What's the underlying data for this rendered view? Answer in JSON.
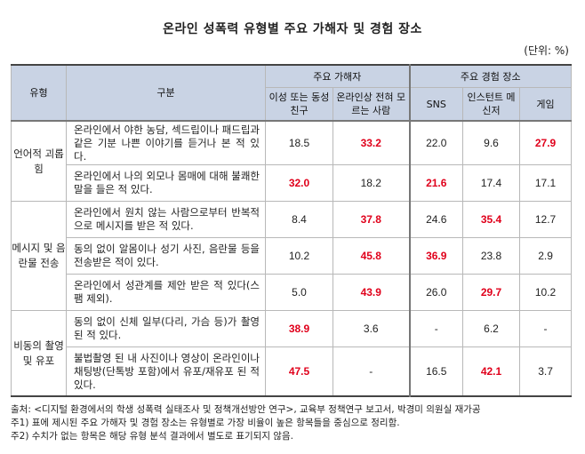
{
  "title": "온라인 성폭력 유형별 주요 가해자 및 경험 장소",
  "unit": "(단위: %)",
  "header": {
    "type": "유형",
    "category": "구분",
    "perpetrator_group": "주요 가해자",
    "place_group": "주요 경험 장소",
    "cols": [
      "이성 또는 동성 친구",
      "온라인상 전혀 모르는 사람",
      "SNS",
      "인스턴트 메신저",
      "게임"
    ]
  },
  "groups": [
    {
      "type": "언어적 괴롭힘",
      "rows": [
        {
          "desc": "온라인에서 야한 농담, 섹드립이나 패드립과 같은 기분 나쁜 이야기를 듣거나 본 적 있다.",
          "values": [
            "18.5",
            "33.2",
            "22.0",
            "9.6",
            "27.9"
          ]
        },
        {
          "desc": "온라인에서 나의 외모나 몸매에 대해 불쾌한 말을 들은 적 있다.",
          "values": [
            "32.0",
            "18.2",
            "21.6",
            "17.4",
            "17.1"
          ]
        }
      ]
    },
    {
      "type": "메시지 및 음란물 전송",
      "rows": [
        {
          "desc": "온라인에서 원치 않는 사람으로부터 반복적으로 메시지를 받은 적 있다.",
          "values": [
            "8.4",
            "37.8",
            "24.6",
            "35.4",
            "12.7"
          ]
        },
        {
          "desc": "동의 없이 알몸이나 성기 사진, 음란물 등을 전송받은 적이 있다.",
          "values": [
            "10.2",
            "45.8",
            "36.9",
            "23.8",
            "2.9"
          ]
        },
        {
          "desc": "온라인에서 성관계를 제안 받은 적 있다(스팸 제외).",
          "values": [
            "5.0",
            "43.9",
            "26.0",
            "29.7",
            "10.2"
          ]
        }
      ]
    },
    {
      "type": "비동의 촬영 및 유포",
      "rows": [
        {
          "desc": "동의 없이 신체 일부(다리, 가슴 등)가 촬영된 적 있다.",
          "values": [
            "38.9",
            "3.6",
            "-",
            "6.2",
            "-"
          ]
        },
        {
          "desc": "불법촬영 된 내 사진이나 영상이 온라인이나 채팅방(단톡방 포함)에서 유포/재유포 된 적 있다.",
          "values": [
            "47.5",
            "-",
            "16.5",
            "42.1",
            "3.7"
          ]
        }
      ]
    }
  ],
  "highlight_color": "#e0001b",
  "notes": {
    "source": "출처: <디지털 환경에서의 학생 성폭력 실태조사 및 정책개선방안 연구>, 교육부 정책연구 보고서, 박경미 의원실 재가공",
    "note1": "주1) 표에 제시된 주요 가해자 및 경험 장소는 유형별로 가장 비율이 높은 항목들을 중심으로 정리함.",
    "note2": "주2) 수치가 없는 항목은 해당 유형 분석 결과에서 별도로 표기되지 않음."
  }
}
